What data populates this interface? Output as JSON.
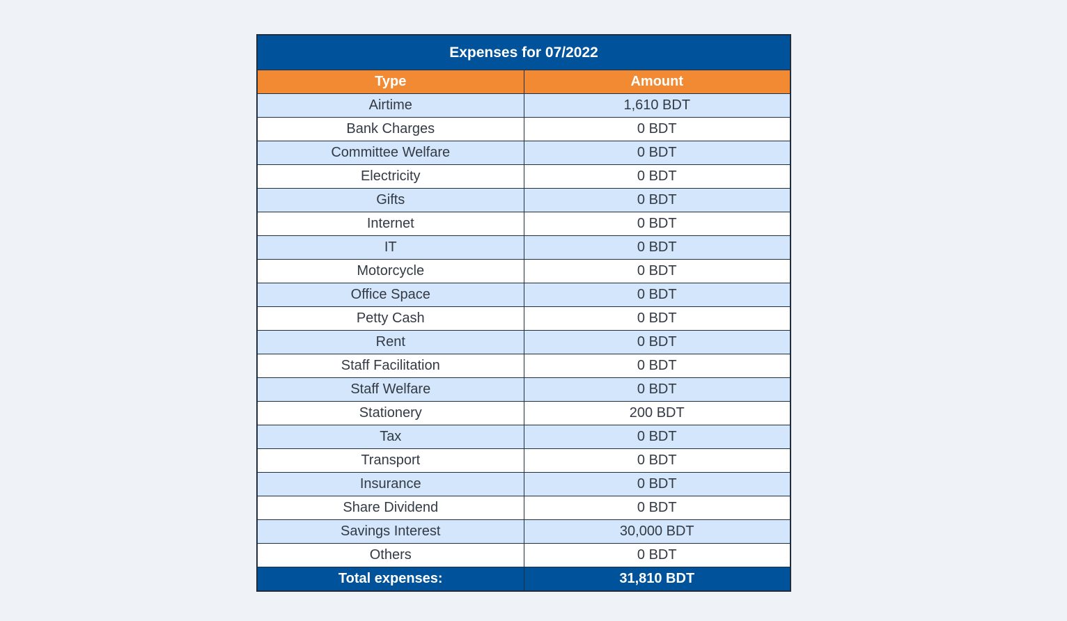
{
  "table": {
    "title": "Expenses for 07/2022",
    "headers": [
      "Type",
      "Amount"
    ],
    "rows": [
      {
        "type": "Airtime",
        "amount": "1,610 BDT"
      },
      {
        "type": "Bank Charges",
        "amount": "0 BDT"
      },
      {
        "type": "Committee Welfare",
        "amount": "0 BDT"
      },
      {
        "type": "Electricity",
        "amount": "0 BDT"
      },
      {
        "type": "Gifts",
        "amount": "0 BDT"
      },
      {
        "type": "Internet",
        "amount": "0 BDT"
      },
      {
        "type": "IT",
        "amount": "0 BDT"
      },
      {
        "type": "Motorcycle",
        "amount": "0 BDT"
      },
      {
        "type": "Office Space",
        "amount": "0 BDT"
      },
      {
        "type": "Petty Cash",
        "amount": "0 BDT"
      },
      {
        "type": "Rent",
        "amount": "0 BDT"
      },
      {
        "type": "Staff Facilitation",
        "amount": "0 BDT"
      },
      {
        "type": "Staff Welfare",
        "amount": "0 BDT"
      },
      {
        "type": "Stationery",
        "amount": "200 BDT"
      },
      {
        "type": "Tax",
        "amount": "0 BDT"
      },
      {
        "type": "Transport",
        "amount": "0 BDT"
      },
      {
        "type": "Insurance",
        "amount": "0 BDT"
      },
      {
        "type": "Share Dividend",
        "amount": "0 BDT"
      },
      {
        "type": "Savings Interest",
        "amount": "30,000 BDT"
      },
      {
        "type": "Others",
        "amount": "0 BDT"
      }
    ],
    "total": {
      "label": "Total expenses:",
      "amount": "31,810 BDT"
    }
  },
  "colors": {
    "title_bg": "#00529b",
    "header_bg": "#f28a33",
    "stripe_bg": "#d4e6fb",
    "page_bg": "#eff2f7"
  }
}
